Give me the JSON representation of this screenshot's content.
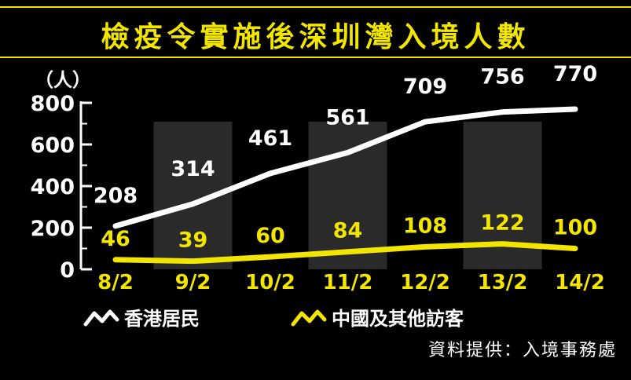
{
  "title": "檢疫令實施後深圳灣入境人數",
  "source": "資料提供：入境事務處",
  "colors": {
    "accent": "#f2e600",
    "series_white": "#ffffff",
    "series_yellow": "#f2e600",
    "band": "#2a2a2a"
  },
  "chart_data": {
    "type": "line",
    "ylabel": "（人）",
    "ylim": [
      0,
      800
    ],
    "yticks": [
      "0",
      "200",
      "400",
      "600",
      "800"
    ],
    "categories": [
      "8/2",
      "9/2",
      "10/2",
      "11/2",
      "12/2",
      "13/2",
      "14/2"
    ],
    "series": [
      {
        "name": "香港居民",
        "values": [
          208,
          314,
          461,
          561,
          709,
          756,
          770
        ],
        "color": "#ffffff"
      },
      {
        "name": "中國及其他訪客",
        "values": [
          46,
          39,
          60,
          84,
          108,
          122,
          100
        ],
        "color": "#f2e600"
      }
    ],
    "grid": false,
    "legend": "bottom-left"
  }
}
